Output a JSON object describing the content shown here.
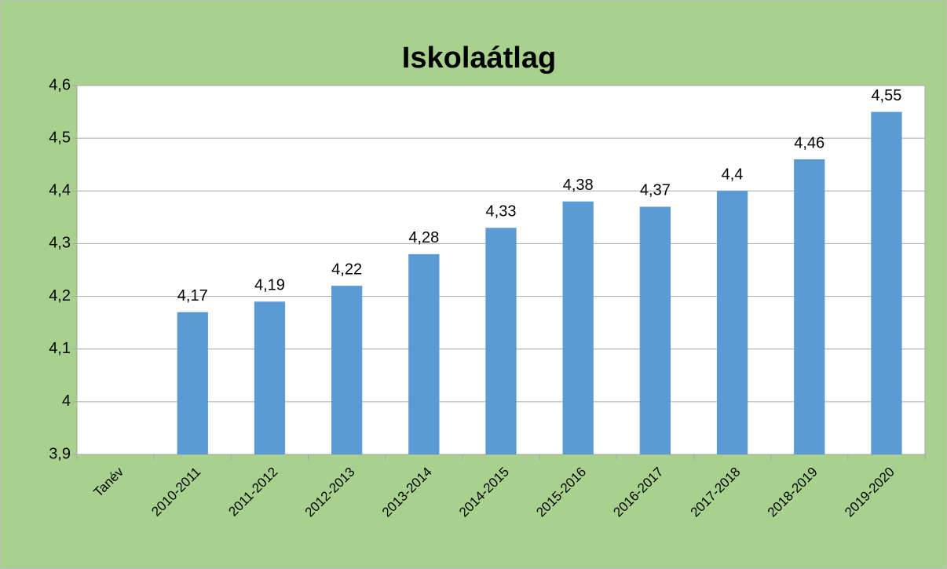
{
  "chart_data": {
    "type": "bar",
    "title": "Iskolaátlag",
    "categories": [
      "Tanév",
      "2010-2011",
      "2011-2012",
      "2012-2013",
      "2013-2014",
      "2014-2015",
      "2015-2016",
      "2016-2017",
      "2017-2018",
      "2018-2019",
      "2019-2020"
    ],
    "values": [
      null,
      4.17,
      4.19,
      4.22,
      4.28,
      4.33,
      4.38,
      4.37,
      4.4,
      4.46,
      4.55
    ],
    "value_labels": [
      null,
      "4,17",
      "4,19",
      "4,22",
      "4,28",
      "4,33",
      "4,38",
      "4,37",
      "4,4",
      "4,46",
      "4,55"
    ],
    "color": "#5b9bd5",
    "ylim": [
      3.9,
      4.6
    ],
    "yticks": [
      {
        "value": 3.9,
        "label": "3,9"
      },
      4,
      {
        "value": 4.1,
        "label": "4,1"
      },
      {
        "value": 4.2,
        "label": "4,2"
      },
      {
        "value": 4.3,
        "label": "4,3"
      },
      {
        "value": 4.4,
        "label": "4,4"
      },
      {
        "value": 4.5,
        "label": "4,5"
      },
      {
        "value": 4.6,
        "label": "4,6"
      }
    ],
    "grid": true
  }
}
